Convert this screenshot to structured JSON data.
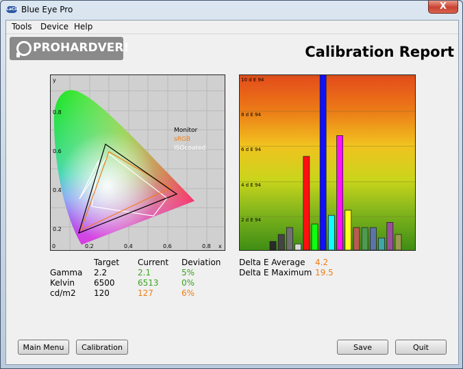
{
  "window": {
    "title": "Blue Eye Pro",
    "app_icon": "LaCie",
    "close_glyph": "X"
  },
  "menubar": [
    "Tools",
    "Device",
    "Help"
  ],
  "logo": {
    "text": "PROHARDVER!"
  },
  "report": {
    "title": "Calibration Report"
  },
  "gamut": {
    "legend": [
      {
        "label": "Monitor",
        "color": "#000000"
      },
      {
        "label": "sRGB",
        "color": "#ef7d14"
      },
      {
        "label": "ISOcoated",
        "color": "#ffffff"
      }
    ],
    "axis_label_x": "x",
    "axis_label_y": "y",
    "x_ticks": [
      "0",
      "0.2",
      "0.4",
      "0.6",
      "0.8"
    ],
    "y_ticks": [
      "0",
      "0.2",
      "0.4",
      "0.6",
      "0.8"
    ]
  },
  "chart_data": {
    "type": "bar",
    "ylim": [
      0,
      10
    ],
    "y_ticks": [
      "2 d E 94",
      "4 d E 94",
      "6 d E 94",
      "8 d E 94",
      "10 d E 94"
    ],
    "values": [
      0.5,
      0.9,
      1.3,
      0.35,
      5.4,
      1.5,
      10.5,
      2.0,
      6.6,
      2.3,
      1.3,
      1.3,
      1.3,
      0.7,
      1.6,
      0.9
    ],
    "colors": [
      "#2a2a2a",
      "#444444",
      "#707070",
      "#d9d9d9",
      "#ff1010",
      "#10ff10",
      "#1010ff",
      "#10ffff",
      "#ff10ff",
      "#ffff20",
      "#b85c50",
      "#4e9a4e",
      "#5b74a8",
      "#3fa6a6",
      "#9a4f9a",
      "#9a9a50"
    ]
  },
  "measurements": {
    "headers": [
      "Target",
      "Current",
      "Deviation"
    ],
    "rows": [
      {
        "label": "Gamma",
        "target": "2.2",
        "current": "2.1",
        "deviation": "5%",
        "status_color": "#3aa420"
      },
      {
        "label": "Kelvin",
        "target": "6500",
        "current": "6513",
        "deviation": "0%",
        "status_color": "#3aa420"
      },
      {
        "label": "cd/m2",
        "target": "120",
        "current": "127",
        "deviation": "6%",
        "status_color": "#ef7d14"
      }
    ]
  },
  "delta": {
    "average_label": "Delta E Average",
    "average_value": "4.2",
    "maximum_label": "Delta E Maximum",
    "maximum_value": "19.5"
  },
  "buttons": {
    "main_menu": "Main Menu",
    "calibration": "Calibration",
    "save": "Save",
    "quit": "Quit"
  }
}
